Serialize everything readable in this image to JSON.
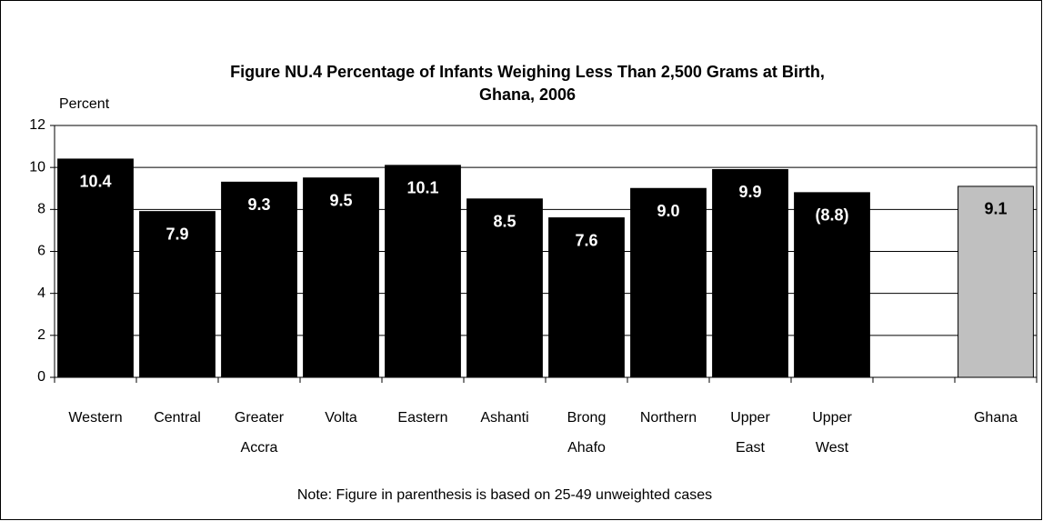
{
  "chart_data": {
    "type": "bar",
    "title": [
      "Figure NU.4 Percentage of Infants Weighing Less Than 2,500 Grams at Birth,",
      "Ghana, 2006"
    ],
    "y_axis_label": "Percent",
    "categories": [
      "Western",
      "Central",
      "Greater Accra",
      "Volta",
      "Eastern",
      "Ashanti",
      "Brong Ahafo",
      "Northern",
      "Upper East",
      "Upper West",
      null,
      "Ghana"
    ],
    "values": [
      10.4,
      7.9,
      9.3,
      9.5,
      10.1,
      8.5,
      7.6,
      9.0,
      9.9,
      8.8,
      null,
      9.1
    ],
    "value_labels": [
      "10.4",
      "7.9",
      "9.3",
      "9.5",
      "10.1",
      "8.5",
      "7.6",
      "9.0",
      "9.9",
      "(8.8)",
      null,
      "9.1"
    ],
    "colors": [
      "#000000",
      "#000000",
      "#000000",
      "#000000",
      "#000000",
      "#000000",
      "#000000",
      "#000000",
      "#000000",
      "#000000",
      null,
      "#c0c0c0"
    ],
    "ylim": [
      0,
      12
    ],
    "yticks": [
      0,
      2,
      4,
      6,
      8,
      10,
      12
    ],
    "grid": true,
    "note": "Note: Figure in parenthesis is based on 25-49 unweighted cases"
  }
}
